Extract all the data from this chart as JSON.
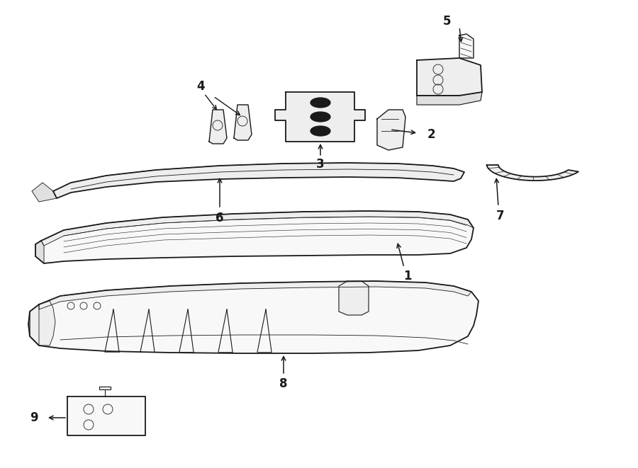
{
  "bg_color": "#ffffff",
  "line_color": "#1a1a1a",
  "fig_width": 9.0,
  "fig_height": 6.61,
  "lw_main": 1.3,
  "lw_thin": 0.6,
  "fill_light": "#f8f8f8",
  "fill_mid": "#eeeeee",
  "fill_dark": "#e0e0e0"
}
